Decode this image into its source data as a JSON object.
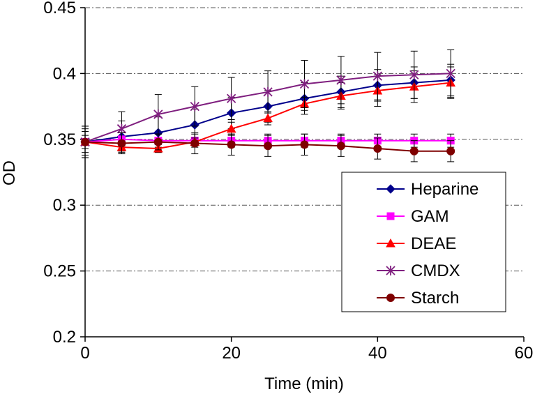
{
  "chart_data": {
    "type": "line",
    "title": "",
    "xlabel": "Time (min)",
    "ylabel": "OD",
    "xlim": [
      0,
      60
    ],
    "ylim": [
      0.2,
      0.45
    ],
    "xticks": [
      0,
      20,
      40,
      60
    ],
    "xtick_labels": [
      "0",
      "20",
      "40",
      "60"
    ],
    "yticks": [
      0.2,
      0.25,
      0.3,
      0.35,
      0.4,
      0.45
    ],
    "ytick_labels": [
      "0.2",
      "0.25",
      "0.3",
      "0.35",
      "0.4",
      "0.45"
    ],
    "grid": "horizontal dash-dot",
    "legend_position": "right-center",
    "x": [
      0,
      5,
      10,
      15,
      20,
      25,
      30,
      35,
      40,
      45,
      50
    ],
    "series": [
      {
        "name": "Heparine",
        "color": "#00008B",
        "marker": "diamond",
        "values": [
          0.348,
          0.352,
          0.355,
          0.361,
          0.37,
          0.375,
          0.381,
          0.386,
          0.391,
          0.393,
          0.395
        ],
        "errors": [
          0.012,
          0.012,
          0.012,
          0.012,
          0.012,
          0.012,
          0.012,
          0.012,
          0.012,
          0.012,
          0.012
        ]
      },
      {
        "name": "GAM",
        "color": "#FF00FF",
        "marker": "square",
        "values": [
          0.348,
          0.35,
          0.349,
          0.349,
          0.349,
          0.349,
          0.349,
          0.349,
          0.349,
          0.349,
          0.349
        ],
        "errors": [
          0.005,
          0.005,
          0.005,
          0.005,
          0.005,
          0.005,
          0.005,
          0.005,
          0.005,
          0.005,
          0.005
        ]
      },
      {
        "name": "DEAE",
        "color": "#FF0000",
        "marker": "triangle",
        "values": [
          0.348,
          0.344,
          0.343,
          0.348,
          0.358,
          0.366,
          0.377,
          0.383,
          0.387,
          0.39,
          0.393
        ],
        "errors": [
          0.008,
          0.003,
          0.003,
          0.003,
          0.005,
          0.005,
          0.005,
          0.01,
          0.012,
          0.012,
          0.012
        ]
      },
      {
        "name": "CMDX",
        "color": "#7F1F7F",
        "marker": "asterisk",
        "values": [
          0.348,
          0.358,
          0.369,
          0.375,
          0.381,
          0.386,
          0.392,
          0.395,
          0.398,
          0.399,
          0.4
        ],
        "errors": [
          0.01,
          0.013,
          0.015,
          0.015,
          0.016,
          0.016,
          0.018,
          0.018,
          0.018,
          0.018,
          0.018
        ]
      },
      {
        "name": "Starch",
        "color": "#7F0000",
        "marker": "circle",
        "values": [
          0.348,
          0.347,
          0.348,
          0.347,
          0.346,
          0.345,
          0.346,
          0.345,
          0.343,
          0.341,
          0.341
        ],
        "errors": [
          0.012,
          0.008,
          0.006,
          0.008,
          0.008,
          0.008,
          0.008,
          0.008,
          0.008,
          0.008,
          0.008
        ]
      }
    ]
  }
}
